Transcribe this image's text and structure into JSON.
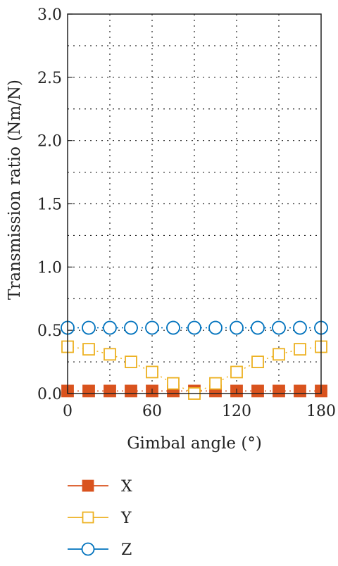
{
  "chart_data": {
    "type": "scatter",
    "xlabel": "Gimbal angle (°)",
    "ylabel": "Transmission ratio (Nm/N)",
    "xlim": [
      0,
      180
    ],
    "ylim": [
      0,
      3.0
    ],
    "xticks": [
      "0",
      "60",
      "120",
      "180"
    ],
    "yticks": [
      "0.0",
      "0.5",
      "1.0",
      "1.5",
      "2.0",
      "2.5",
      "3.0"
    ],
    "grid": true,
    "legend_placement": "below",
    "series": [
      {
        "name": "X",
        "color": "#d9531e",
        "marker": "filled-square",
        "x": [
          0,
          15,
          30,
          45,
          60,
          75,
          90,
          105,
          120,
          135,
          150,
          165,
          180
        ],
        "y": [
          0.02,
          0.02,
          0.02,
          0.02,
          0.02,
          0.02,
          0.02,
          0.02,
          0.02,
          0.02,
          0.02,
          0.02,
          0.02
        ]
      },
      {
        "name": "Y",
        "color": "#edb120",
        "marker": "open-square",
        "x": [
          0,
          15,
          30,
          45,
          60,
          75,
          90,
          105,
          120,
          135,
          150,
          165,
          180
        ],
        "y": [
          0.37,
          0.35,
          0.31,
          0.25,
          0.17,
          0.08,
          0.0,
          0.08,
          0.17,
          0.25,
          0.31,
          0.35,
          0.37
        ]
      },
      {
        "name": "Z",
        "color": "#0072bd",
        "marker": "open-circle",
        "x": [
          0,
          15,
          30,
          45,
          60,
          75,
          90,
          105,
          120,
          135,
          150,
          165,
          180
        ],
        "y": [
          0.52,
          0.52,
          0.52,
          0.52,
          0.52,
          0.52,
          0.52,
          0.52,
          0.52,
          0.52,
          0.52,
          0.52,
          0.52
        ]
      }
    ]
  }
}
